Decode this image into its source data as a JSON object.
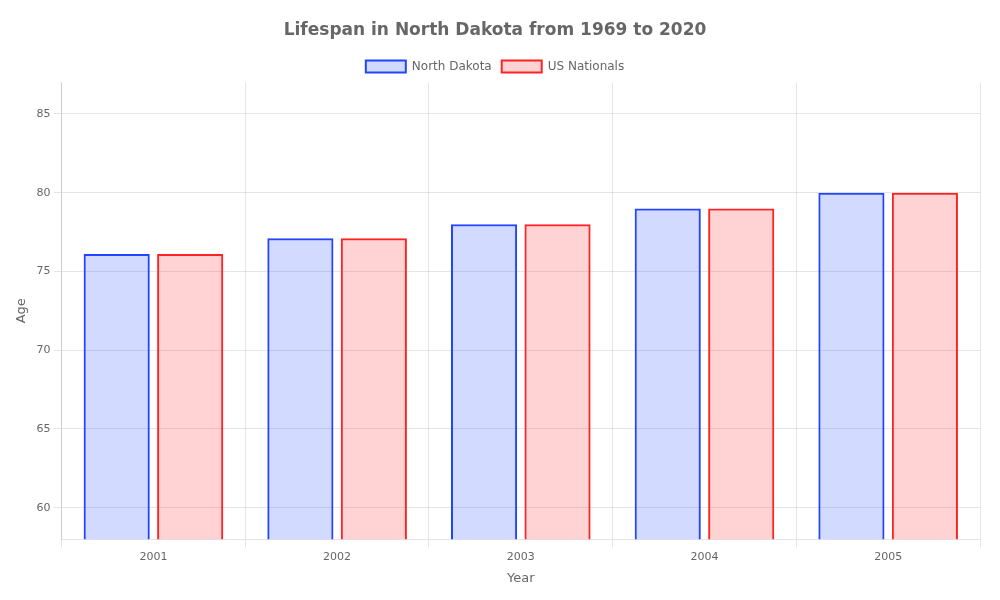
{
  "chart_data": {
    "type": "bar",
    "title": "Lifespan in North Dakota from 1969 to 2020",
    "xlabel": "Year",
    "ylabel": "Age",
    "categories": [
      "2001",
      "2002",
      "2003",
      "2004",
      "2005"
    ],
    "series": [
      {
        "name": "North Dakota",
        "color": "#2244ff",
        "values": [
          76.1,
          77.1,
          78.0,
          79.0,
          80.0
        ]
      },
      {
        "name": "US Nationals",
        "color": "#ff2222",
        "values": [
          76.1,
          77.1,
          78.0,
          79.0,
          80.0
        ]
      }
    ],
    "ylim": [
      58,
      87
    ],
    "yticks": [
      60,
      65,
      70,
      75,
      80,
      85
    ],
    "grid": true,
    "legend": "top"
  }
}
